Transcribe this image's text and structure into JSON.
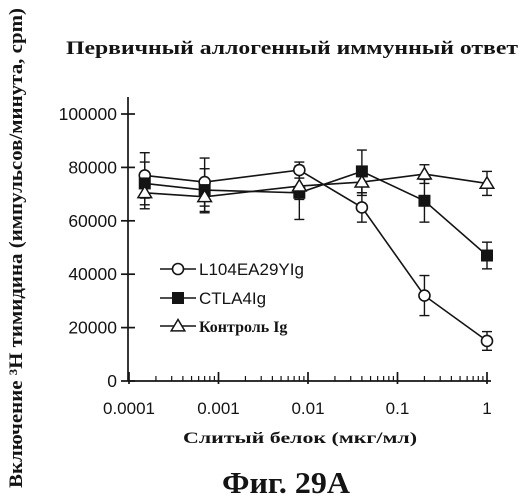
{
  "caption": "Фиг. 29A",
  "chart_data": {
    "type": "line",
    "title": "Первичный аллогенный иммунный ответ",
    "xlabel": "Слитый белок (мкг/мл)",
    "ylabel": "Включение ³H тимидина (импульсов/минута, cpm)",
    "xscale": "log",
    "xlim": [
      0.0001,
      1
    ],
    "ylim": [
      0,
      100000
    ],
    "x_ticks": [
      0.0001,
      0.001,
      0.01,
      0.1,
      1
    ],
    "x_tick_labels": [
      "0.0001",
      "0.001",
      "0.01",
      "0.1",
      "1"
    ],
    "y_ticks": [
      0,
      20000,
      40000,
      60000,
      80000,
      100000
    ],
    "y_tick_labels": [
      "0",
      "20000",
      "40000",
      "60000",
      "80000",
      "100000"
    ],
    "grid": false,
    "legend_position": "center-left",
    "x": [
      0.00015,
      0.0007,
      0.008,
      0.04,
      0.2,
      1
    ],
    "series": [
      {
        "name": "L104EA29YIg",
        "marker": "open-circle",
        "values": [
          77000,
          74500,
          79000,
          65000,
          32000,
          15000
        ],
        "errors": [
          8500,
          9000,
          3000,
          5500,
          7500,
          3500
        ]
      },
      {
        "name": "CTLA4Ig",
        "marker": "filled-square",
        "values": [
          74000,
          71500,
          70500,
          78500,
          67500,
          47000
        ],
        "errors": [
          8000,
          8000,
          10000,
          8000,
          8000,
          5000
        ]
      },
      {
        "name": "Контроль Ig",
        "marker": "open-triangle",
        "values": [
          70500,
          69000,
          73000,
          74500,
          77500,
          74000
        ],
        "errors": [
          6000,
          6000,
          5000,
          5000,
          3500,
          4500
        ]
      }
    ]
  }
}
